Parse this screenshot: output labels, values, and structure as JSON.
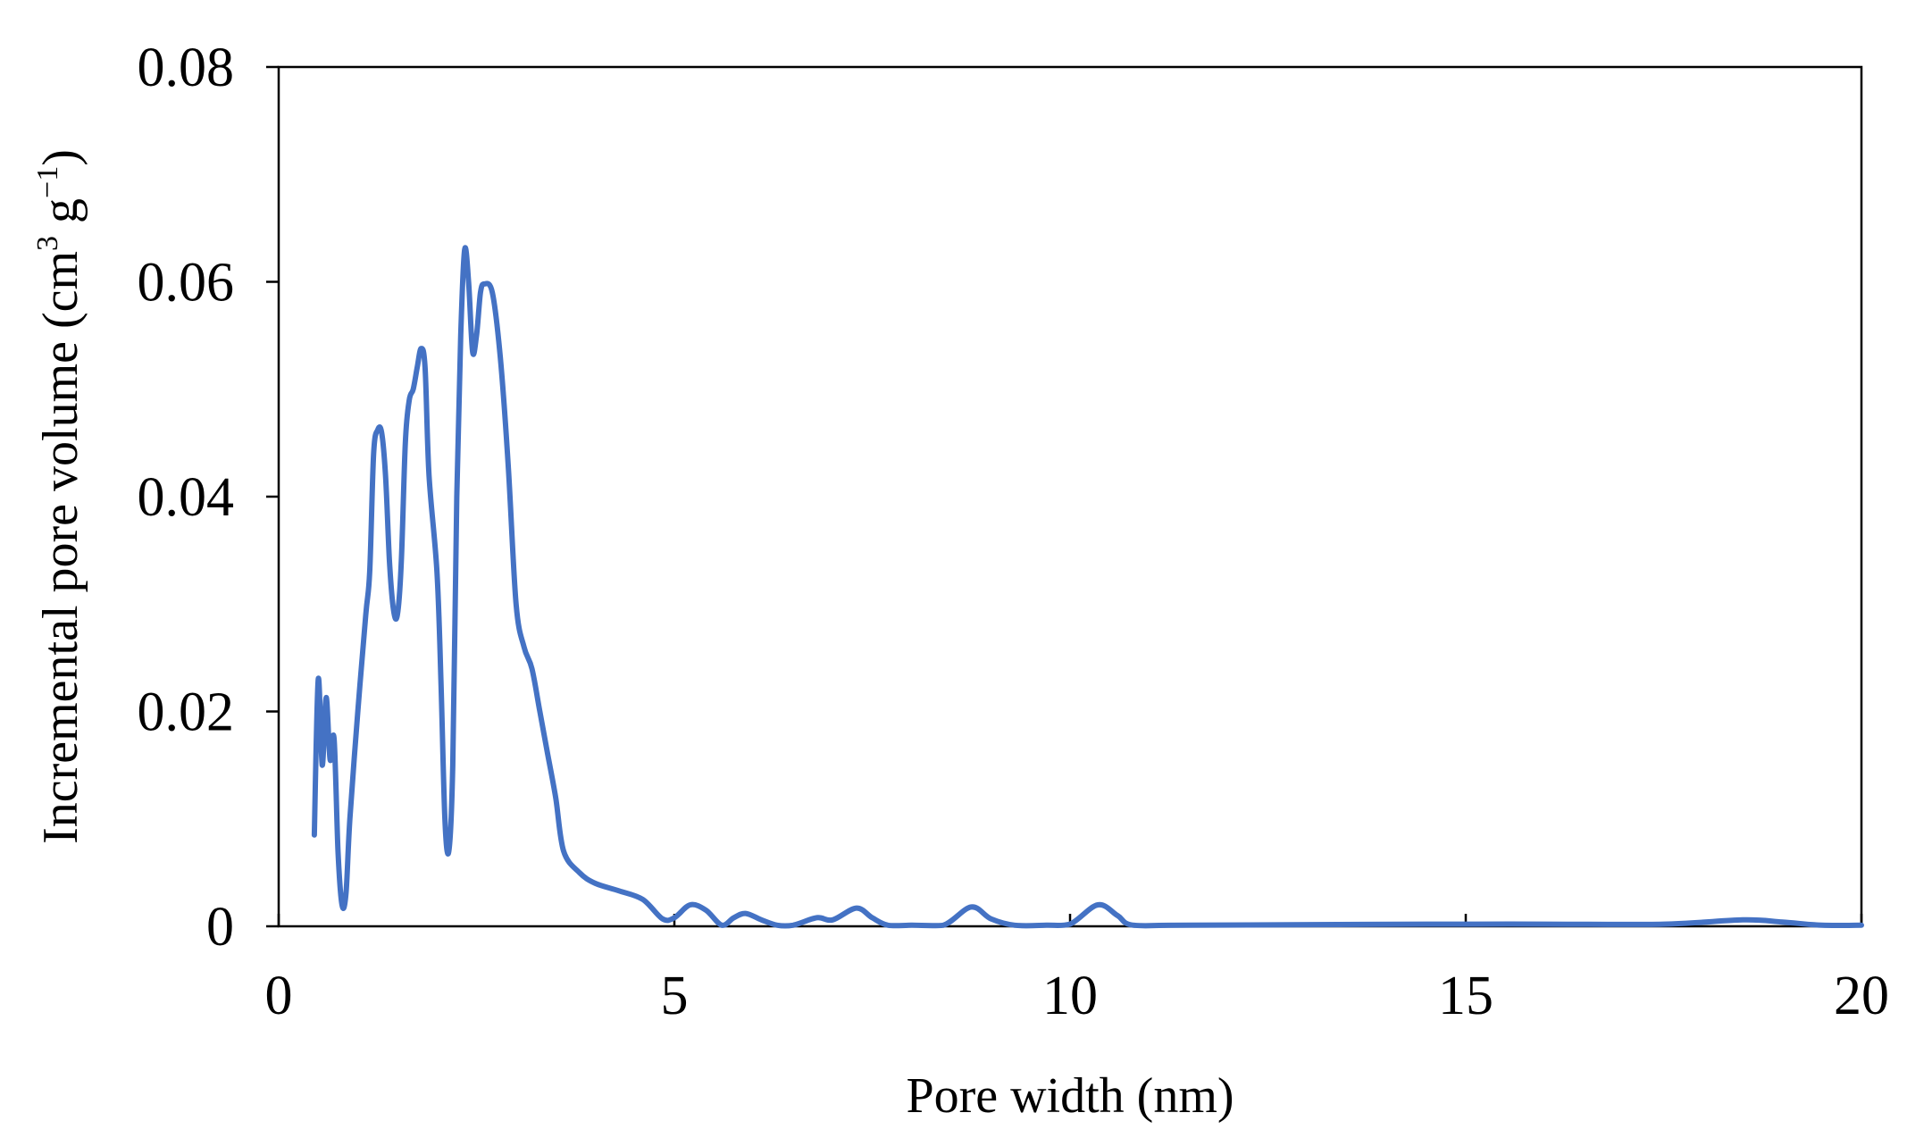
{
  "chart_data": {
    "type": "line",
    "title": "",
    "xlabel": "Pore width (nm)",
    "ylabel": {
      "main": "Incremental pore volume (cm",
      "sup1": "3",
      "mid": " g",
      "sup2": "−1",
      "end": ")"
    },
    "xlim": [
      0,
      20
    ],
    "ylim": [
      0,
      0.08
    ],
    "x_ticks": [
      0,
      5,
      10,
      15,
      20
    ],
    "x_tick_labels": [
      "0",
      "5",
      "10",
      "15",
      "20"
    ],
    "y_ticks": [
      0,
      0.02,
      0.04,
      0.06,
      0.08
    ],
    "y_tick_labels": [
      "0",
      "0.02",
      "0.04",
      "0.06",
      "0.08"
    ],
    "grid": false,
    "legend": "none",
    "series": [
      {
        "color": "#4472c4",
        "points": [
          [
            0.45,
            0.0085
          ],
          [
            0.5,
            0.023
          ],
          [
            0.55,
            0.015
          ],
          [
            0.6,
            0.0213
          ],
          [
            0.65,
            0.0155
          ],
          [
            0.7,
            0.0175
          ],
          [
            0.75,
            0.007
          ],
          [
            0.8,
            0.002
          ],
          [
            0.85,
            0.003
          ],
          [
            0.9,
            0.01
          ],
          [
            1.0,
            0.02
          ],
          [
            1.1,
            0.029
          ],
          [
            1.15,
            0.033
          ],
          [
            1.2,
            0.044
          ],
          [
            1.25,
            0.0462
          ],
          [
            1.3,
            0.046
          ],
          [
            1.35,
            0.042
          ],
          [
            1.4,
            0.034
          ],
          [
            1.45,
            0.0295
          ],
          [
            1.5,
            0.029
          ],
          [
            1.55,
            0.034
          ],
          [
            1.6,
            0.045
          ],
          [
            1.65,
            0.049
          ],
          [
            1.7,
            0.05
          ],
          [
            1.75,
            0.052
          ],
          [
            1.8,
            0.0538
          ],
          [
            1.85,
            0.052
          ],
          [
            1.9,
            0.042
          ],
          [
            2.0,
            0.033
          ],
          [
            2.05,
            0.023
          ],
          [
            2.1,
            0.01
          ],
          [
            2.15,
            0.007
          ],
          [
            2.2,
            0.015
          ],
          [
            2.25,
            0.04
          ],
          [
            2.3,
            0.055
          ],
          [
            2.35,
            0.063
          ],
          [
            2.4,
            0.06
          ],
          [
            2.45,
            0.0535
          ],
          [
            2.5,
            0.055
          ],
          [
            2.55,
            0.059
          ],
          [
            2.6,
            0.0598
          ],
          [
            2.7,
            0.059
          ],
          [
            2.8,
            0.053
          ],
          [
            2.9,
            0.043
          ],
          [
            3.0,
            0.03
          ],
          [
            3.1,
            0.026
          ],
          [
            3.2,
            0.024
          ],
          [
            3.3,
            0.02
          ],
          [
            3.4,
            0.016
          ],
          [
            3.5,
            0.012
          ],
          [
            3.6,
            0.007
          ],
          [
            3.8,
            0.005
          ],
          [
            4.0,
            0.004
          ],
          [
            4.3,
            0.0033
          ],
          [
            4.6,
            0.0025
          ],
          [
            4.85,
            0.0007
          ],
          [
            5.0,
            0.0008
          ],
          [
            5.2,
            0.002
          ],
          [
            5.4,
            0.0015
          ],
          [
            5.6,
            0.0001
          ],
          [
            5.75,
            0.0008
          ],
          [
            5.9,
            0.0012
          ],
          [
            6.1,
            0.0006
          ],
          [
            6.3,
            0.0001
          ],
          [
            6.5,
            0.0001
          ],
          [
            6.8,
            0.0008
          ],
          [
            7.0,
            0.0006
          ],
          [
            7.3,
            0.0017
          ],
          [
            7.5,
            0.0008
          ],
          [
            7.7,
            0.0001
          ],
          [
            8.0,
            0.0001
          ],
          [
            8.4,
            0.0001
          ],
          [
            8.75,
            0.0018
          ],
          [
            9.0,
            0.0007
          ],
          [
            9.3,
            0.0001
          ],
          [
            9.7,
            0.0001
          ],
          [
            10.0,
            0.0002
          ],
          [
            10.35,
            0.002
          ],
          [
            10.6,
            0.001
          ],
          [
            10.8,
            0.0001
          ],
          [
            11.5,
            0.0001
          ],
          [
            14.5,
            0.0002
          ],
          [
            16.0,
            0.0002
          ],
          [
            17.5,
            0.0002
          ],
          [
            18.5,
            0.0006
          ],
          [
            19.0,
            0.0004
          ],
          [
            19.5,
            0.0001
          ],
          [
            20.0,
            0.0001
          ]
        ]
      }
    ]
  }
}
